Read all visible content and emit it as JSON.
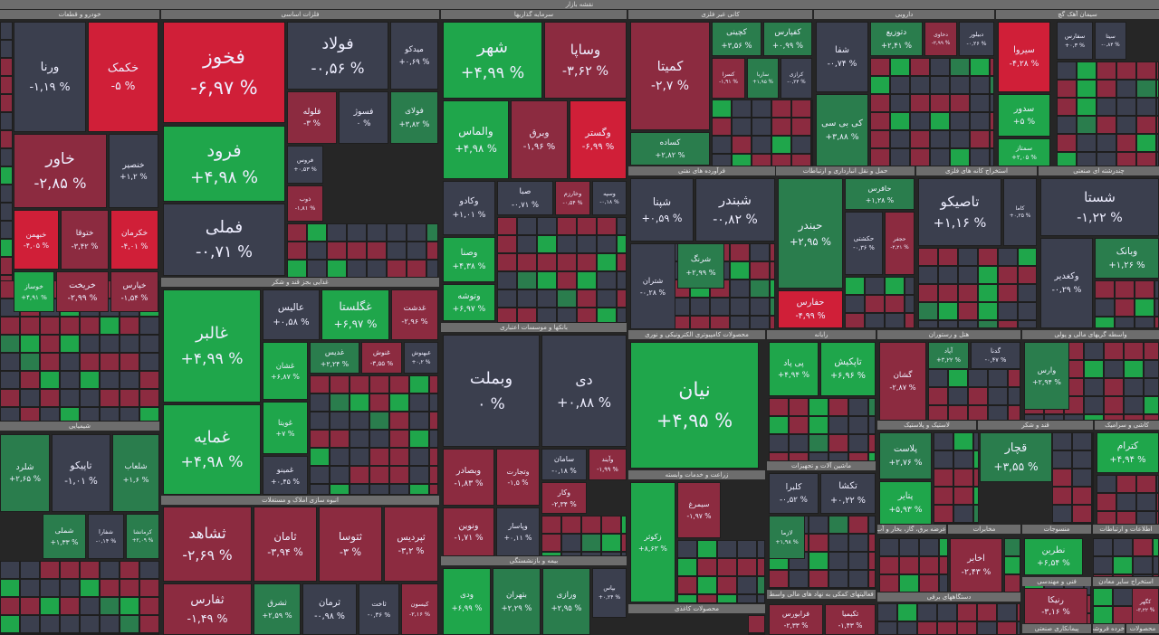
{
  "title": "نقشه بازار",
  "colors": {
    "gray": "#3b3f4e",
    "darkred": "#8c2b40",
    "red": "#d01f38",
    "green": "#1fa64b",
    "darkgreen": "#2a7d4d",
    "background": "#262626",
    "header": "#6d6d6d"
  },
  "sectors": [
    "خودرو و قطعات",
    "فلزات اساسی",
    "سرمایه گذاریها",
    "کانی غیر فلزی",
    "دارویی",
    "سیمان آهک گچ",
    "فرآورده های نفتی",
    "حمل و نقل انبارداری و ارتباطات",
    "استخراج کانه های فلزی",
    "چندرشته ای صنعتی",
    "غذایی بجز قند و شکر",
    "بانکها و موسسات اعتباری",
    "شیمیایی",
    "انبوه سازی املاک و مستغلات",
    "محصولات کامپیوتری الکترونیکی و نوری",
    "رایانه",
    "هتل و رستوران",
    "واسطه گریهای مالی و پولی",
    "زراعت و خدمات وابسته",
    "ماشین آلات و تجهیزات",
    "لاستیک و پلاستیک",
    "قند و شکر",
    "کاشی و سرامیک",
    "بیمه و بازنشستگی",
    "محصولات کاغذی",
    "فعالیتهای کمکی به نهاد های مالی واسط",
    "عرضه برق، گاز، بخار و آب",
    "مخابرات",
    "منسوجات",
    "اطلاعات و ارتباطات",
    "دستگاههای برقی",
    "فنی و مهندسی",
    "استخراج سایر معادن",
    "پیمانکاری صنعتی",
    "خرده فروشی",
    "محصولات"
  ],
  "tiles": [
    {
      "name": "ورنا",
      "change": "-۱,۱۹ %",
      "tone": "gray"
    },
    {
      "name": "خکمک",
      "change": "-۵ %",
      "tone": "red"
    },
    {
      "name": "خاور",
      "change": "-۲,۸۵ %",
      "tone": "darkred"
    },
    {
      "name": "خنصیر",
      "change": "+۱,۲ %",
      "tone": "gray"
    },
    {
      "name": "خبهمن",
      "change": "-۴,۰۵ %",
      "tone": "red"
    },
    {
      "name": "ختوقا",
      "change": "-۳,۴۲ %",
      "tone": "darkred"
    },
    {
      "name": "خکرمان",
      "change": "-۴,۰۱ %",
      "tone": "red"
    },
    {
      "name": "خوساز",
      "change": "+۴,۹۱ %",
      "tone": "green"
    },
    {
      "name": "خریخت",
      "change": "-۲,۹۹ %",
      "tone": "darkred"
    },
    {
      "name": "خپارس",
      "change": "-۱,۵۴ %",
      "tone": "darkred"
    },
    {
      "name": "فخوز",
      "change": "-۶,۹۷ %",
      "tone": "red"
    },
    {
      "name": "فرود",
      "change": "+۴,۹۸ %",
      "tone": "green"
    },
    {
      "name": "فملی",
      "change": "-۰,۷۱ %",
      "tone": "gray"
    },
    {
      "name": "فولاد",
      "change": "-۰,۵۶ %",
      "tone": "gray"
    },
    {
      "name": "میدکو",
      "change": "+۰,۶۹ %",
      "tone": "gray"
    },
    {
      "name": "فلوله",
      "change": "-۳ %",
      "tone": "darkred"
    },
    {
      "name": "فسوژ",
      "change": "۰ %",
      "tone": "gray"
    },
    {
      "name": "فولای",
      "change": "+۳,۸۲ %",
      "tone": "darkgreen"
    },
    {
      "name": "فروس",
      "change": "+۰,۵۳ %",
      "tone": "gray"
    },
    {
      "name": "ذوب",
      "change": "-۱,۸۱ %",
      "tone": "darkred"
    },
    {
      "name": "شهر",
      "change": "+۴,۹۹ %",
      "tone": "green"
    },
    {
      "name": "وساپا",
      "change": "-۳,۶۲ %",
      "tone": "darkred"
    },
    {
      "name": "والماس",
      "change": "+۴,۹۸ %",
      "tone": "green"
    },
    {
      "name": "وبرق",
      "change": "-۱,۹۶ %",
      "tone": "darkred"
    },
    {
      "name": "وگستر",
      "change": "-۶,۹۹ %",
      "tone": "red"
    },
    {
      "name": "وکادو",
      "change": "+۱,۰۱ %",
      "tone": "gray"
    },
    {
      "name": "صبا",
      "change": "-۰,۷۱ %",
      "tone": "gray"
    },
    {
      "name": "وخارزم",
      "change": "-۰,۵۴ %",
      "tone": "darkred"
    },
    {
      "name": "وسپه",
      "change": "-۰,۱۸ %",
      "tone": "gray"
    },
    {
      "name": "وصنا",
      "change": "+۴,۳۸ %",
      "tone": "green"
    },
    {
      "name": "وتوشه",
      "change": "+۶,۹۷ %",
      "tone": "green"
    },
    {
      "name": "کمیتا",
      "change": "-۲,۷ %",
      "tone": "darkred"
    },
    {
      "name": "کساده",
      "change": "+۲,۸۲ %",
      "tone": "darkgreen"
    },
    {
      "name": "کچینی",
      "change": "+۳,۵۶ %",
      "tone": "darkgreen"
    },
    {
      "name": "کفپارس",
      "change": "+۰,۹۹ %",
      "tone": "darkgreen"
    },
    {
      "name": "کسرا",
      "change": "-۱,۹۱ %",
      "tone": "darkred"
    },
    {
      "name": "ساربا",
      "change": "+۱,۹۵ %",
      "tone": "darkgreen"
    },
    {
      "name": "کرازی",
      "change": "-۰,۳۴ %",
      "tone": "gray"
    },
    {
      "name": "شفا",
      "change": "-۰,۷۴ %",
      "tone": "gray"
    },
    {
      "name": "کی بی سی",
      "change": "+۳,۸۸ %",
      "tone": "darkgreen"
    },
    {
      "name": "دتوزیع",
      "change": "+۲,۴۱ %",
      "tone": "darkgreen"
    },
    {
      "name": "دحاوی",
      "change": "-۲,۹۹ %",
      "tone": "darkred"
    },
    {
      "name": "دبیلور",
      "change": "-۰,۲۶ %",
      "tone": "gray"
    },
    {
      "name": "سیروا",
      "change": "-۴,۲۸ %",
      "tone": "red"
    },
    {
      "name": "سدور",
      "change": "+۵ %",
      "tone": "green"
    },
    {
      "name": "سمتاز",
      "change": "+۲,۰۵ %",
      "tone": "green"
    },
    {
      "name": "سفارس",
      "change": "+۰,۳ %",
      "tone": "gray"
    },
    {
      "name": "سیتا",
      "change": "-۰,۸۴ %",
      "tone": "gray"
    },
    {
      "name": "شپنا",
      "change": "+۰,۵۹ %",
      "tone": "gray"
    },
    {
      "name": "شبندر",
      "change": "-۰,۸۲ %",
      "tone": "gray"
    },
    {
      "name": "شتران",
      "change": "-۰,۲۸ %",
      "tone": "gray"
    },
    {
      "name": "شرنگ",
      "change": "+۲,۹۹ %",
      "tone": "darkgreen"
    },
    {
      "name": "حبندر",
      "change": "+۲,۹۵ %",
      "tone": "darkgreen"
    },
    {
      "name": "حافرس",
      "change": "+۱,۲۸ %",
      "tone": "darkgreen"
    },
    {
      "name": "حکشتی",
      "change": "-۰,۳۶ %",
      "tone": "gray"
    },
    {
      "name": "حجفر",
      "change": "-۲,۲۱ %",
      "tone": "darkred"
    },
    {
      "name": "حفارس",
      "change": "-۴,۹۹ %",
      "tone": "red"
    },
    {
      "name": "تاصیکو",
      "change": "+۱,۱۶ %",
      "tone": "gray"
    },
    {
      "name": "کاما",
      "change": "+۰,۲۵ %",
      "tone": "gray"
    },
    {
      "name": "شستا",
      "change": "-۱,۲۲ %",
      "tone": "gray"
    },
    {
      "name": "وکغدیر",
      "change": "-۰,۲۹ %",
      "tone": "gray"
    },
    {
      "name": "وبانک",
      "change": "+۱,۲۶ %",
      "tone": "darkgreen"
    },
    {
      "name": "غالبر",
      "change": "+۴,۹۹ %",
      "tone": "green"
    },
    {
      "name": "غمایه",
      "change": "+۴,۹۸ %",
      "tone": "green"
    },
    {
      "name": "عالیس",
      "change": "+۰,۵۸ %",
      "tone": "gray"
    },
    {
      "name": "غگلستا",
      "change": "+۶,۹۷ %",
      "tone": "green"
    },
    {
      "name": "غدشت",
      "change": "-۲,۹۶ %",
      "tone": "darkred"
    },
    {
      "name": "غشان",
      "change": "+۶,۸۷ %",
      "tone": "green"
    },
    {
      "name": "غویتا",
      "change": "+۷ %",
      "tone": "green"
    },
    {
      "name": "غدیس",
      "change": "+۲,۲۴ %",
      "tone": "darkgreen"
    },
    {
      "name": "غنوش",
      "change": "-۳,۵۵ %",
      "tone": "darkred"
    },
    {
      "name": "غبهنوش",
      "change": "+۰,۲ %",
      "tone": "gray"
    },
    {
      "name": "غمینو",
      "change": "+۰,۴۵ %",
      "tone": "gray"
    },
    {
      "name": "وبملت",
      "change": "۰ %",
      "tone": "gray"
    },
    {
      "name": "دی",
      "change": "+۰,۸۸ %",
      "tone": "gray"
    },
    {
      "name": "وبصادر",
      "change": "-۱,۸۳ %",
      "tone": "darkred"
    },
    {
      "name": "وتجارت",
      "change": "-۱,۵ %",
      "tone": "darkred"
    },
    {
      "name": "سامان",
      "change": "-۰,۱۸ %",
      "tone": "gray"
    },
    {
      "name": "وآیند",
      "change": "-۱,۹۹ %",
      "tone": "darkred"
    },
    {
      "name": "وکار",
      "change": "-۲,۳۴ %",
      "tone": "darkred"
    },
    {
      "name": "ونوین",
      "change": "-۱,۷۱ %",
      "tone": "darkred"
    },
    {
      "name": "وپاسار",
      "change": "+۰,۱۱ %",
      "tone": "gray"
    },
    {
      "name": "نیان",
      "change": "+۴,۹۵ %",
      "tone": "green"
    },
    {
      "name": "پی پاد",
      "change": "+۴,۹۴ %",
      "tone": "green"
    },
    {
      "name": "تاپکیش",
      "change": "+۶,۹۶ %",
      "tone": "green"
    },
    {
      "name": "گشان",
      "change": "-۲,۸۷ %",
      "tone": "darkred"
    },
    {
      "name": "آپاد",
      "change": "+۳,۲۲ %",
      "tone": "darkgreen"
    },
    {
      "name": "گدنا",
      "change": "-۰,۴۷ %",
      "tone": "gray"
    },
    {
      "name": "وارس",
      "change": "+۲,۹۴ %",
      "tone": "darkgreen"
    },
    {
      "name": "زکوثر",
      "change": "+۸,۶۳ %",
      "tone": "green"
    },
    {
      "name": "سیمرغ",
      "change": "-۱,۹۷ %",
      "tone": "darkred"
    },
    {
      "name": "کلبرا",
      "change": "-۰,۵۲ %",
      "tone": "gray"
    },
    {
      "name": "تکشا",
      "change": "+۰,۲۲ %",
      "tone": "gray"
    },
    {
      "name": "لازما",
      "change": "+۱,۹۸ %",
      "tone": "darkgreen"
    },
    {
      "name": "پلاست",
      "change": "+۲,۷۶ %",
      "tone": "darkgreen"
    },
    {
      "name": "پتایر",
      "change": "+۵,۹۳ %",
      "tone": "green"
    },
    {
      "name": "قچار",
      "change": "+۳,۵۵ %",
      "tone": "darkgreen"
    },
    {
      "name": "کترام",
      "change": "+۴,۹۴ %",
      "tone": "green"
    },
    {
      "name": "اخابر",
      "change": "-۲,۴۳ %",
      "tone": "darkred"
    },
    {
      "name": "نطرین",
      "change": "+۶,۵۴ %",
      "tone": "green"
    },
    {
      "name": "ودی",
      "change": "+۶,۹۹ %",
      "tone": "green"
    },
    {
      "name": "بتهران",
      "change": "+۲,۲۹ %",
      "tone": "darkgreen"
    },
    {
      "name": "ورازی",
      "change": "+۲,۹۵ %",
      "tone": "darkgreen"
    },
    {
      "name": "بپاس",
      "change": "+۰,۲۴ %",
      "tone": "gray"
    },
    {
      "name": "ثشاهد",
      "change": "-۲,۶۹ %",
      "tone": "darkred"
    },
    {
      "name": "ثامان",
      "change": "-۳,۹۴ %",
      "tone": "darkred"
    },
    {
      "name": "ثتوسا",
      "change": "-۳ %",
      "tone": "darkred"
    },
    {
      "name": "ثپردیس",
      "change": "-۳,۲ %",
      "tone": "darkred"
    },
    {
      "name": "ثفارس",
      "change": "-۱,۴۹ %",
      "tone": "darkred"
    },
    {
      "name": "ثشرق",
      "change": "+۲,۵۹ %",
      "tone": "darkgreen"
    },
    {
      "name": "ثرمان",
      "change": "-۰,۹۸ %",
      "tone": "gray"
    },
    {
      "name": "ثاخت",
      "change": "-۰,۳۶ %",
      "tone": "gray"
    },
    {
      "name": "کیسون",
      "change": "-۲,۱۶ %",
      "tone": "darkred"
    },
    {
      "name": "شلرد",
      "change": "+۲,۶۵ %",
      "tone": "darkgreen"
    },
    {
      "name": "تاپیکو",
      "change": "-۱,۰۱ %",
      "tone": "gray"
    },
    {
      "name": "شلعاب",
      "change": "+۱,۶ %",
      "tone": "darkgreen"
    },
    {
      "name": "شملی",
      "change": "+۱,۳۳ %",
      "tone": "darkgreen"
    },
    {
      "name": "شفارا",
      "change": "-۰,۱۴ %",
      "tone": "gray"
    },
    {
      "name": "کرمانشا",
      "change": "+۲,۰۹ %",
      "tone": "darkgreen"
    },
    {
      "name": "فرابورس",
      "change": "-۲,۳۳ %",
      "tone": "darkred"
    },
    {
      "name": "تکیمیا",
      "change": "-۱,۴۳ %",
      "tone": "darkred"
    },
    {
      "name": "رنیکا",
      "change": "-۳,۱۶ %",
      "tone": "darkred"
    },
    {
      "name": "کگهر",
      "change": "-۳,۲۲ %",
      "tone": "darkred"
    }
  ]
}
